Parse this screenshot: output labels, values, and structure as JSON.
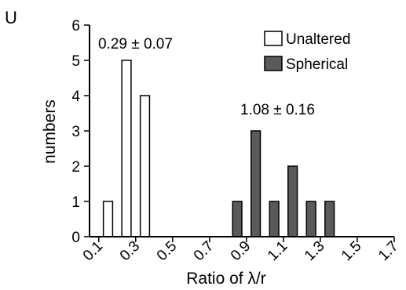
{
  "panel_label": "U",
  "chart_data": {
    "type": "bar",
    "xlabel": "Ratio of λ/r",
    "ylabel": "numbers",
    "xlim": [
      0.05,
      1.7
    ],
    "ylim": [
      0,
      6
    ],
    "x_ticks": [
      "0.1",
      "0.3",
      "0.5",
      "0.7",
      "0.9",
      "1.1",
      "1.3",
      "1.5",
      "1.7"
    ],
    "y_ticks": [
      "0",
      "1",
      "2",
      "3",
      "4",
      "5",
      "6"
    ],
    "bar_width": 0.05,
    "grid": false,
    "legend_position": "top-right",
    "series": [
      {
        "name": "Unaltered",
        "fill": "#ffffff",
        "x": [
          0.15,
          0.25,
          0.35
        ],
        "values": [
          1,
          5,
          4
        ]
      },
      {
        "name": "Spherical",
        "fill": "#5a5a5a",
        "x": [
          0.85,
          0.95,
          1.05,
          1.15,
          1.25,
          1.35
        ],
        "values": [
          1,
          3,
          1,
          2,
          1,
          1
        ]
      }
    ],
    "annotations": [
      {
        "text": "0.29 ± 0.07",
        "series": "Unaltered"
      },
      {
        "text": "1.08 ± 0.16",
        "series": "Spherical"
      }
    ]
  }
}
